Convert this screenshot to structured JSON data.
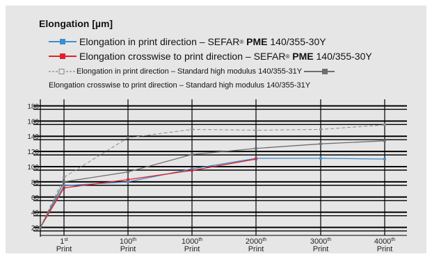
{
  "chart_data": {
    "type": "line",
    "title": "Elongation [µm]",
    "x_ticks": [
      {
        "num": "1",
        "sup": "st",
        "word": "Print"
      },
      {
        "num": "100",
        "sup": "th",
        "word": "Print"
      },
      {
        "num": "1000",
        "sup": "th",
        "word": "Print"
      },
      {
        "num": "2000",
        "sup": "th",
        "word": "Print"
      },
      {
        "num": "3000",
        "sup": "th",
        "word": "Print"
      },
      {
        "num": "4000",
        "sup": "th",
        "word": "Print"
      }
    ],
    "y_ticks": [
      20,
      40,
      60,
      80,
      100,
      120,
      140,
      160,
      180
    ],
    "ylim": [
      15,
      185
    ],
    "grid": true,
    "series": [
      {
        "name_pre": "Elongation in print direction – SEFAR",
        "name_mark": "®",
        "name_bold": "PME",
        "name_post": "140/355-30Y",
        "color": "#3a8ed0",
        "style": "solid",
        "points": [
          [
            0,
            20
          ],
          [
            1,
            75
          ],
          [
            100,
            80
          ],
          [
            1000,
            97
          ],
          [
            2000,
            111
          ],
          [
            3000,
            111
          ],
          [
            4000,
            110
          ]
        ]
      },
      {
        "name_pre": "Elongation crosswise to print direction – SEFAR",
        "name_mark": "®",
        "name_bold": "PME",
        "name_post": "140/355-30Y",
        "color": "#e0202a",
        "style": "solid",
        "points": [
          [
            0,
            20
          ],
          [
            1,
            72
          ],
          [
            100,
            83
          ],
          [
            1000,
            95
          ],
          [
            2000,
            110
          ]
        ]
      },
      {
        "name_pre": "Elongation in print direction – Standard high modulus 140/355-31Y",
        "color": "#8a8a8a",
        "style": "dashed",
        "points": [
          [
            0,
            20
          ],
          [
            1,
            86
          ],
          [
            100,
            138
          ],
          [
            1000,
            149
          ],
          [
            2000,
            148
          ],
          [
            3000,
            149
          ],
          [
            4000,
            155
          ]
        ]
      },
      {
        "name_pre": "Elongation crosswise to print direction – Standard high modulus 140/355-31Y",
        "color": "#6e6e6e",
        "style": "solid",
        "points": [
          [
            0,
            20
          ],
          [
            1,
            80
          ],
          [
            100,
            93
          ],
          [
            1000,
            116
          ],
          [
            2000,
            124
          ],
          [
            3000,
            130
          ],
          [
            4000,
            134
          ]
        ]
      }
    ]
  }
}
